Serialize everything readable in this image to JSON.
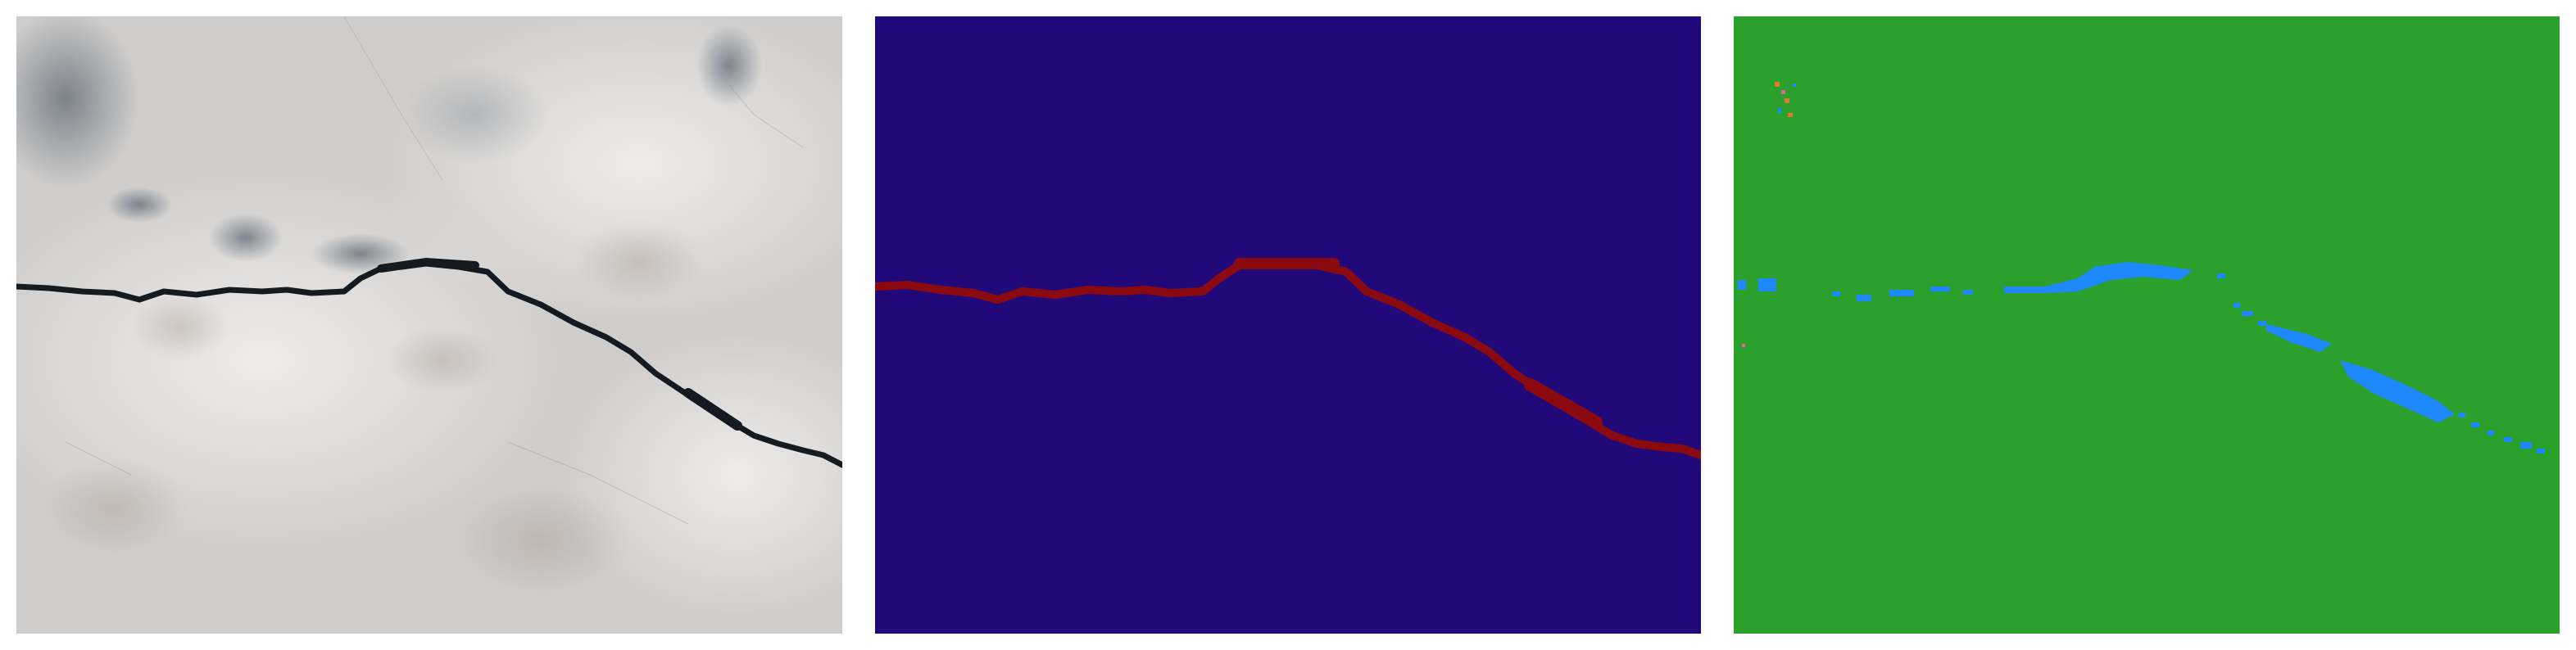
{
  "figure": {
    "panels": [
      {
        "id": "photo",
        "kind": "concrete-surface-photo"
      },
      {
        "id": "mask",
        "kind": "ground-truth-segmentation"
      },
      {
        "id": "pred",
        "kind": "predicted-segmentation"
      }
    ]
  },
  "colors": {
    "concrete": "#cfcdcb",
    "concrete_light": "#e3e2e0",
    "stain": "#6f7a86",
    "crack_dark": "#141a1f",
    "mask_background": "#22097a",
    "mask_crack": "#8b0a0f",
    "pred_background": "#2ca02c",
    "pred_crack": "#1e88ff",
    "pred_noise_orange": "#e0782a",
    "pred_noise_pink": "#d46a9a"
  }
}
